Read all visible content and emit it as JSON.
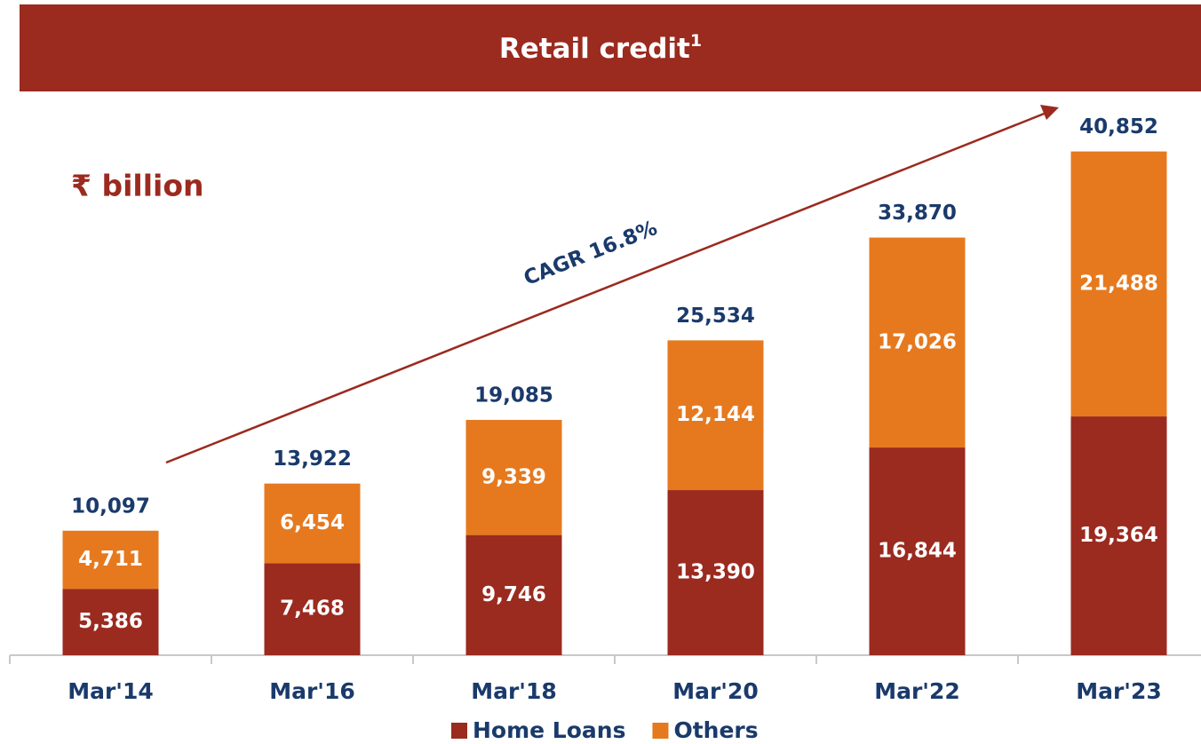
{
  "chart_data": {
    "type": "stacked_bar",
    "title": "Retail credit",
    "title_superscript": "1",
    "unit_label": "₹ billion",
    "annotation": "CAGR 16.8%",
    "categories": [
      "Mar'14",
      "Mar'16",
      "Mar'18",
      "Mar'20",
      "Mar'22",
      "Mar'23"
    ],
    "series": [
      {
        "name": "Home Loans",
        "color": "#9b2a1f",
        "values": [
          5386,
          7468,
          9746,
          13390,
          16844,
          19364
        ],
        "value_labels": [
          "5,386",
          "7,468",
          "9,746",
          "13,390",
          "16,844",
          "19,364"
        ]
      },
      {
        "name": "Others",
        "color": "#e6791e",
        "values": [
          4711,
          6454,
          9339,
          12144,
          17026,
          21488
        ],
        "value_labels": [
          "4,711",
          "6,454",
          "9,339",
          "12,144",
          "17,026",
          "21,488"
        ]
      }
    ],
    "totals": {
      "values": [
        10097,
        13922,
        19085,
        25534,
        33870,
        40852
      ],
      "value_labels": [
        "10,097",
        "13,922",
        "19,085",
        "25,534",
        "33,870",
        "40,852"
      ]
    },
    "ylim": [
      0,
      45000
    ],
    "legend": "bottom"
  }
}
